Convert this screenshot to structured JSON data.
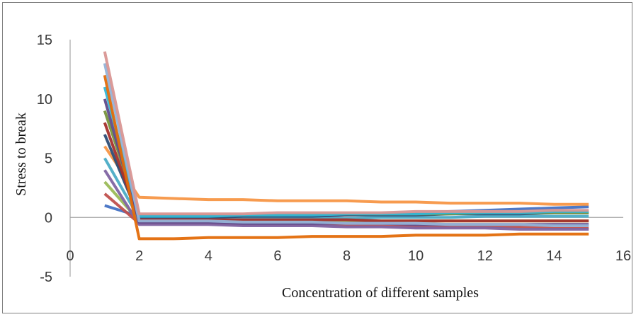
{
  "chart_data": {
    "type": "line",
    "title": "",
    "xlabel": "Concentration of different samples",
    "ylabel": "Stress to break",
    "xlim": [
      0,
      16
    ],
    "ylim": [
      -5,
      15
    ],
    "x_ticks": [
      0,
      2,
      4,
      6,
      8,
      10,
      12,
      14,
      16
    ],
    "y_ticks": [
      -5,
      0,
      5,
      10,
      15
    ],
    "grid": false,
    "legend": "none",
    "x": [
      1,
      2,
      3,
      4,
      5,
      6,
      7,
      8,
      9,
      10,
      11,
      12,
      13,
      14,
      15
    ],
    "series": [
      {
        "color": "#4472C4",
        "values": [
          1,
          0.1,
          0.1,
          0.1,
          0.1,
          0.1,
          0.1,
          0.2,
          0.3,
          0.4,
          0.5,
          0.6,
          0.7,
          0.8,
          0.9
        ]
      },
      {
        "color": "#C0504D",
        "values": [
          2,
          -0.5,
          -0.5,
          -0.5,
          -0.6,
          -0.6,
          -0.6,
          -0.7,
          -0.7,
          -0.8,
          -0.8,
          -0.8,
          -0.8,
          -0.9,
          -0.9
        ]
      },
      {
        "color": "#9BBB59",
        "values": [
          3,
          -0.3,
          -0.3,
          -0.3,
          -0.3,
          -0.3,
          -0.3,
          -0.3,
          -0.3,
          -0.3,
          -0.3,
          -0.3,
          -0.3,
          -0.3,
          -0.3
        ]
      },
      {
        "color": "#8064A2",
        "values": [
          4,
          -0.6,
          -0.6,
          -0.6,
          -0.7,
          -0.7,
          -0.7,
          -0.8,
          -0.8,
          -0.9,
          -0.9,
          -0.9,
          -1.0,
          -1.0,
          -1.0
        ]
      },
      {
        "color": "#4BACC6",
        "values": [
          5,
          -0.1,
          -0.1,
          -0.1,
          -0.1,
          -0.1,
          -0.1,
          -0.1,
          0.0,
          0.0,
          0.0,
          0.1,
          0.1,
          0.1,
          0.1
        ]
      },
      {
        "color": "#F79646",
        "values": [
          6,
          1.7,
          1.6,
          1.5,
          1.5,
          1.4,
          1.4,
          1.4,
          1.3,
          1.3,
          1.2,
          1.2,
          1.2,
          1.1,
          1.1
        ]
      },
      {
        "color": "#2C4D75",
        "values": [
          7,
          0.0,
          0.0,
          0.0,
          0.1,
          0.1,
          0.1,
          0.2,
          0.2,
          0.2,
          0.3,
          0.3,
          0.3,
          0.4,
          0.4
        ]
      },
      {
        "color": "#A5302B",
        "values": [
          8,
          -0.2,
          -0.2,
          -0.2,
          -0.2,
          -0.2,
          -0.2,
          -0.2,
          -0.3,
          -0.3,
          -0.3,
          -0.3,
          -0.3,
          -0.3,
          -0.3
        ]
      },
      {
        "color": "#77933C",
        "values": [
          9,
          0.2,
          0.2,
          0.2,
          0.2,
          0.2,
          0.3,
          0.3,
          0.3,
          0.3,
          0.3,
          0.4,
          0.4,
          0.4,
          0.4
        ]
      },
      {
        "color": "#5F4B8B",
        "values": [
          10,
          -0.4,
          -0.4,
          -0.4,
          -0.5,
          -0.5,
          -0.5,
          -0.5,
          -0.5,
          -0.6,
          -0.6,
          -0.6,
          -0.6,
          -0.6,
          -0.6
        ]
      },
      {
        "color": "#31B6D6",
        "values": [
          11,
          0.1,
          0.1,
          0.1,
          0.2,
          0.2,
          0.2,
          0.3,
          0.3,
          0.3,
          0.4,
          0.4,
          0.4,
          0.5,
          0.5
        ]
      },
      {
        "color": "#E36C09",
        "values": [
          12,
          -1.8,
          -1.8,
          -1.7,
          -1.7,
          -1.7,
          -1.6,
          -1.6,
          -1.6,
          -1.5,
          -1.5,
          -1.5,
          -1.4,
          -1.4,
          -1.4
        ]
      },
      {
        "color": "#95B3D7",
        "values": [
          13,
          -0.3,
          -0.3,
          -0.3,
          -0.4,
          -0.4,
          -0.4,
          -0.5,
          -0.5,
          -0.5,
          -0.6,
          -0.6,
          -0.6,
          -0.7,
          -0.7
        ]
      },
      {
        "color": "#D99694",
        "values": [
          14,
          0.3,
          0.3,
          0.3,
          0.3,
          0.4,
          0.4,
          0.4,
          0.4,
          0.5,
          0.5,
          0.5,
          0.5,
          0.6,
          0.6
        ]
      }
    ]
  }
}
